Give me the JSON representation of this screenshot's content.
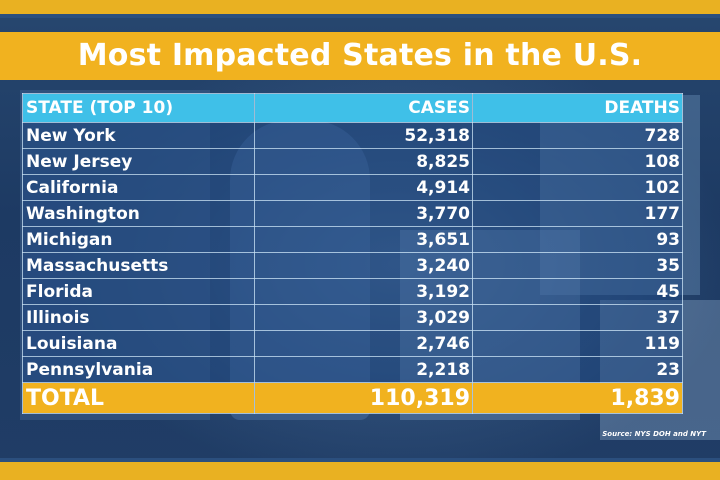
{
  "title": "Most Impacted States in the U.S.",
  "source": "Source: NYS DOH and NYT",
  "colors": {
    "accent_yellow": "#f1b21f",
    "header_blue": "#3fc0e8",
    "background_navy": "#1d3a63",
    "text": "#ffffff"
  },
  "chart_data": {
    "type": "table",
    "columns": [
      "STATE (TOP 10)",
      "CASES",
      "DEATHS"
    ],
    "rows": [
      {
        "state": "New York",
        "cases": "52,318",
        "deaths": "728"
      },
      {
        "state": "New Jersey",
        "cases": "8,825",
        "deaths": "108"
      },
      {
        "state": "California",
        "cases": "4,914",
        "deaths": "102"
      },
      {
        "state": "Washington",
        "cases": "3,770",
        "deaths": "177"
      },
      {
        "state": "Michigan",
        "cases": "3,651",
        "deaths": "93"
      },
      {
        "state": "Massachusetts",
        "cases": "3,240",
        "deaths": "35"
      },
      {
        "state": "Florida",
        "cases": "3,192",
        "deaths": "45"
      },
      {
        "state": "Illinois",
        "cases": "3,029",
        "deaths": "37"
      },
      {
        "state": "Louisiana",
        "cases": "2,746",
        "deaths": "119"
      },
      {
        "state": "Pennsylvania",
        "cases": "2,218",
        "deaths": "23"
      }
    ],
    "total": {
      "label": "TOTAL",
      "cases": "110,319",
      "deaths": "1,839"
    }
  }
}
